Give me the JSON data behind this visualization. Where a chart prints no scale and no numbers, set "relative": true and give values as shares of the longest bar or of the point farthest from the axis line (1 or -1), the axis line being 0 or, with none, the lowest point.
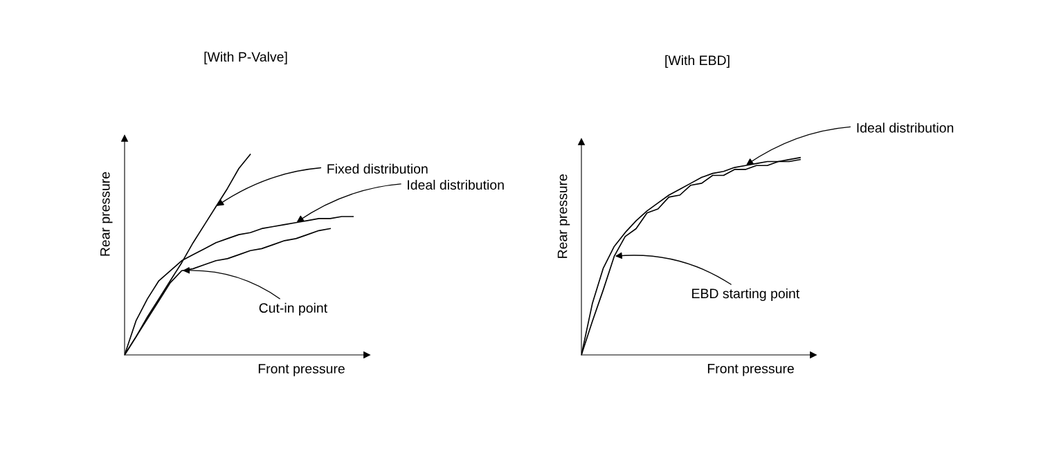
{
  "chart_data": [
    {
      "type": "line",
      "title": "[With P-Valve]",
      "xlabel": "Front pressure",
      "ylabel": "Rear pressure",
      "relative": true,
      "marker": "none",
      "line_style": "solid",
      "categories": [
        null,
        null,
        null,
        null,
        null,
        null,
        null,
        null,
        null,
        null,
        null,
        null,
        null,
        null,
        null,
        null,
        null,
        null,
        null,
        null,
        null
      ],
      "series": [
        {
          "color": "#000000",
          "values": [
            0,
            0.09,
            0.19,
            0.28,
            0.37,
            0.46,
            0.56,
            0.65,
            0.74,
            0.83,
            0.93,
            1.0,
            null,
            null,
            null,
            null,
            null,
            null,
            null,
            null,
            null
          ]
        },
        {
          "color": "#000000",
          "values": [
            0,
            0.17,
            0.28,
            0.37,
            0.42,
            0.47,
            0.5,
            0.53,
            0.56,
            0.58,
            0.6,
            0.61,
            0.63,
            0.64,
            0.65,
            0.66,
            0.67,
            0.68,
            0.68,
            0.69,
            0.69
          ]
        },
        {
          "color": "#000000",
          "values": [
            0,
            0.09,
            0.18,
            0.27,
            0.36,
            0.42,
            0.43,
            0.45,
            0.47,
            0.48,
            0.5,
            0.52,
            0.53,
            0.55,
            0.57,
            0.58,
            0.6,
            0.62,
            0.63,
            null,
            null
          ]
        }
      ],
      "annotations": [
        "Fixed distribution",
        "Ideal distribution",
        "Cut-in point"
      ]
    },
    {
      "type": "line",
      "title": "[With EBD]",
      "xlabel": "Front pressure",
      "ylabel": "Rear pressure",
      "relative": true,
      "marker": "none",
      "line_style": "solid",
      "categories": [
        null,
        null,
        null,
        null,
        null,
        null,
        null,
        null,
        null,
        null,
        null,
        null,
        null,
        null,
        null,
        null,
        null,
        null,
        null,
        null,
        null
      ],
      "series": [
        {
          "color": "#000000",
          "values": [
            0,
            0.26,
            0.44,
            0.55,
            0.62,
            0.68,
            0.73,
            0.77,
            0.81,
            0.84,
            0.87,
            0.9,
            0.92,
            0.93,
            0.95,
            0.96,
            0.97,
            0.98,
            0.98,
            0.99,
            1.0
          ]
        },
        {
          "color": "#000000",
          "values": [
            0,
            0.17,
            0.33,
            0.5,
            0.6,
            0.64,
            0.72,
            0.74,
            0.8,
            0.81,
            0.86,
            0.87,
            0.91,
            0.91,
            0.94,
            0.94,
            0.96,
            0.96,
            0.98,
            0.98,
            0.99
          ]
        }
      ],
      "annotations": [
        "Ideal distribution",
        "EBD starting point"
      ]
    }
  ]
}
